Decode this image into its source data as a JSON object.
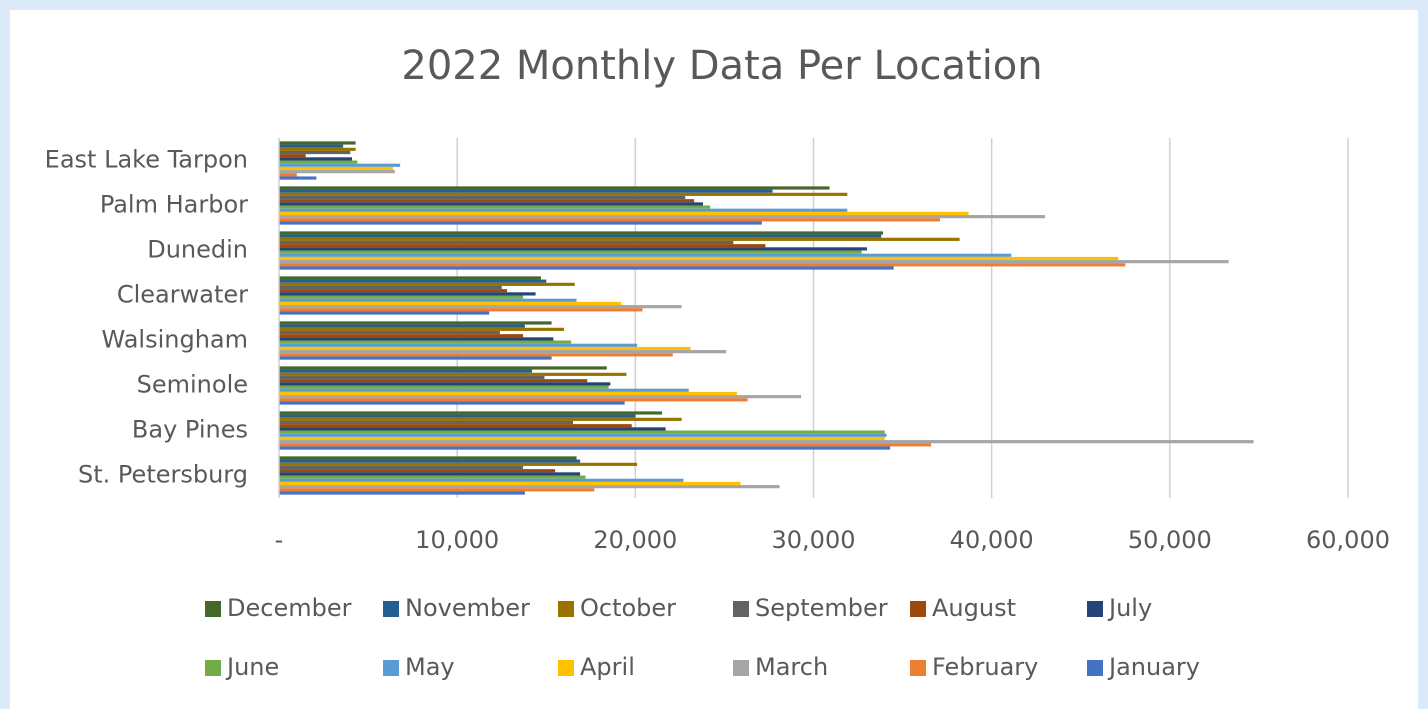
{
  "chart_data": {
    "type": "bar",
    "orientation": "horizontal",
    "title": "2022 Monthly Data Per Location",
    "categories": [
      "East Lake Tarpon",
      "Palm Harbor",
      "Dunedin",
      "Clearwater",
      "Walsingham",
      "Seminole",
      "Bay Pines",
      "St. Petersburg"
    ],
    "series": [
      {
        "name": "December",
        "color": "#43682b",
        "values": [
          4300,
          30900,
          33900,
          14700,
          15300,
          18400,
          21500,
          16700
        ]
      },
      {
        "name": "November",
        "color": "#255e91",
        "values": [
          3600,
          27700,
          33800,
          15000,
          13800,
          14200,
          20000,
          16900
        ]
      },
      {
        "name": "October",
        "color": "#997300",
        "values": [
          4300,
          31900,
          38200,
          16600,
          16000,
          19500,
          22600,
          20100
        ]
      },
      {
        "name": "September",
        "color": "#636363",
        "values": [
          4000,
          22800,
          25500,
          12500,
          12400,
          14900,
          16500,
          13700
        ]
      },
      {
        "name": "August",
        "color": "#9e480e",
        "values": [
          1500,
          23300,
          27300,
          12800,
          13700,
          17300,
          19800,
          15500
        ]
      },
      {
        "name": "July",
        "color": "#264478",
        "values": [
          4100,
          23800,
          33000,
          14400,
          15400,
          18600,
          21700,
          16900
        ]
      },
      {
        "name": "June",
        "color": "#70ad47",
        "values": [
          4400,
          24200,
          32700,
          13700,
          16400,
          18500,
          34000,
          17200
        ]
      },
      {
        "name": "May",
        "color": "#5b9bd5",
        "values": [
          6800,
          31900,
          41100,
          16700,
          20100,
          23000,
          34100,
          22700
        ]
      },
      {
        "name": "April",
        "color": "#ffc000",
        "values": [
          6400,
          38700,
          47100,
          19200,
          23100,
          25700,
          34000,
          25900
        ]
      },
      {
        "name": "March",
        "color": "#a5a5a5",
        "values": [
          6500,
          43000,
          53300,
          22600,
          25100,
          29300,
          54700,
          28100
        ]
      },
      {
        "name": "February",
        "color": "#ed7d31",
        "values": [
          1000,
          37100,
          47500,
          20400,
          22100,
          26300,
          36600,
          17700
        ]
      },
      {
        "name": "January",
        "color": "#4472c4",
        "values": [
          2100,
          27100,
          34500,
          11800,
          15300,
          19400,
          34300,
          13800
        ]
      }
    ],
    "xlim": [
      0,
      60000
    ],
    "xticks": [
      {
        "value": 0,
        "label": "-"
      },
      {
        "value": 10000,
        "label": "10,000"
      },
      {
        "value": 20000,
        "label": "20,000"
      },
      {
        "value": 30000,
        "label": "30,000"
      },
      {
        "value": 40000,
        "label": "40,000"
      },
      {
        "value": 50000,
        "label": "50,000"
      },
      {
        "value": 60000,
        "label": "60,000"
      }
    ],
    "grid": true,
    "legend": "bottom"
  }
}
